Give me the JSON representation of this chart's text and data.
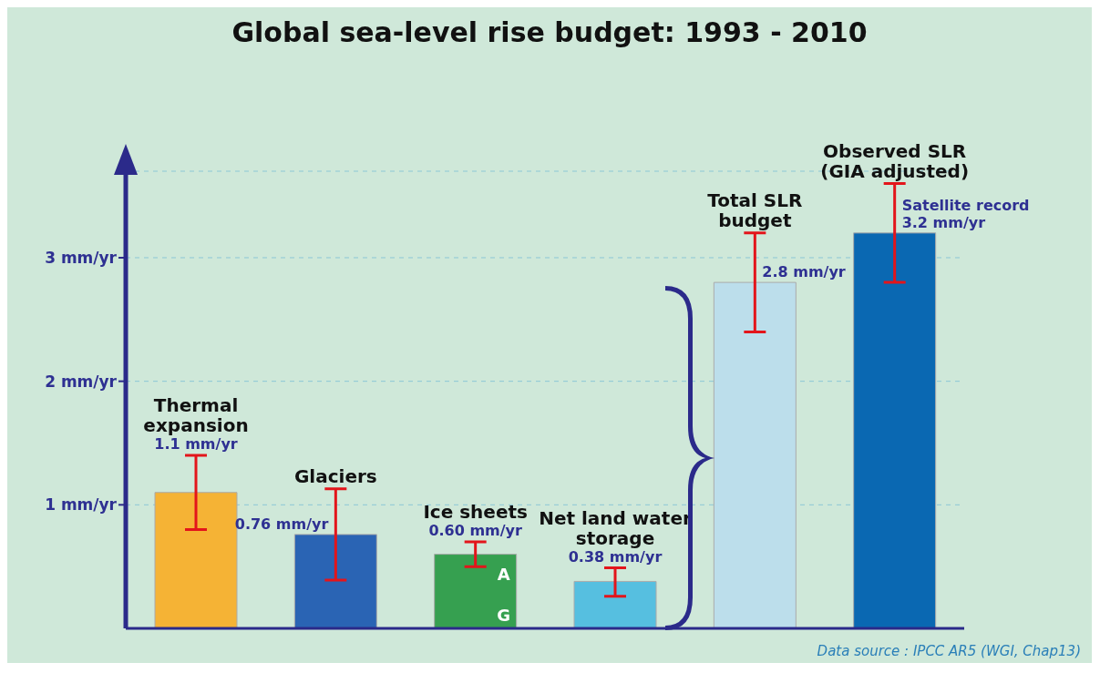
{
  "chart_data": {
    "type": "bar",
    "title": "Global sea-level rise budget: 1993 - 2010",
    "categories": [
      "Thermal expansion",
      "Glaciers",
      "Ice sheets",
      "Net land water storage",
      "Total SLR budget",
      "Observed SLR (GIA adjusted)"
    ],
    "values": [
      1.1,
      0.76,
      0.6,
      0.38,
      2.8,
      3.2
    ],
    "colors": [
      "#f5b335",
      "#2a64b4",
      "#36a050",
      "#56bfe0",
      "#bcdeeb",
      "#0a68b2"
    ],
    "errors": [
      [
        0.8,
        1.4
      ],
      [
        0.39,
        1.13
      ],
      [
        0.5,
        0.7
      ],
      [
        0.26,
        0.49
      ],
      [
        2.4,
        3.2
      ],
      [
        2.8,
        3.6
      ]
    ],
    "value_labels": [
      "1.1 mm/yr",
      "0.76 mm/yr",
      "0.60 mm/yr",
      "0.38 mm/yr",
      "2.8 mm/yr",
      "3.2 mm/yr"
    ],
    "ylim": [
      0,
      3.7
    ],
    "yticks": [
      {
        "value": 1,
        "label": "1 mm/yr"
      },
      {
        "value": 2,
        "label": "2 mm/yr"
      },
      {
        "value": 3,
        "label": "3 mm/yr"
      }
    ],
    "grid": "y",
    "tick_labels": "y",
    "annotations": [
      {
        "text": "A",
        "x": "Ice sheets",
        "y": 0.6
      },
      {
        "text": "G",
        "x": "Ice sheets",
        "y": 0
      },
      {
        "text": "Satellite record",
        "x": "Observed SLR (GIA adjusted)",
        "y": 3.2
      },
      "Data source : IPCC AR5 (WGI, Chap13)"
    ]
  }
}
